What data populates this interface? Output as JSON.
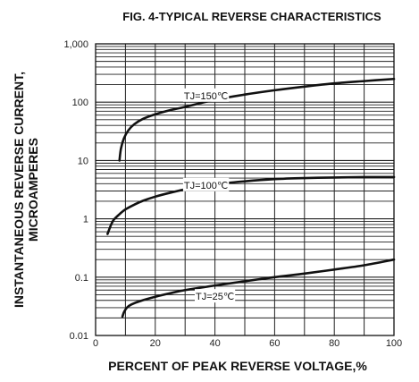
{
  "chart_data": {
    "type": "line",
    "title": "FIG. 4-TYPICAL REVERSE CHARACTERISTICS",
    "xlabel": "PERCENT OF PEAK REVERSE VOLTAGE,%",
    "ylabel_line1": "INSTANTANEOUS REVERSE CURRENT,",
    "ylabel_line2": "MICROAMPERES",
    "xlim": [
      0,
      100
    ],
    "ylim": [
      0.01,
      1000
    ],
    "yscale": "log",
    "grid": true,
    "x_ticks": [
      {
        "value": 0,
        "label": "0"
      },
      {
        "value": 20,
        "label": "20"
      },
      {
        "value": 40,
        "label": "40"
      },
      {
        "value": 60,
        "label": "60"
      },
      {
        "value": 80,
        "label": "80"
      },
      {
        "value": 100,
        "label": "100"
      }
    ],
    "y_ticks": [
      {
        "value": 0.01,
        "label": "0.01"
      },
      {
        "value": 0.1,
        "label": "0.1"
      },
      {
        "value": 1,
        "label": "1"
      },
      {
        "value": 10,
        "label": "10"
      },
      {
        "value": 100,
        "label": "100"
      },
      {
        "value": 1000,
        "label": "1,000"
      }
    ],
    "series": [
      {
        "name": "TJ=150℃",
        "label_at": [
          37,
          130
        ],
        "x": [
          8,
          8.5,
          9.5,
          11,
          13,
          16,
          20,
          25,
          30,
          40,
          50,
          60,
          70,
          80,
          90,
          100
        ],
        "y": [
          10,
          16,
          24,
          33,
          42,
          52,
          62,
          73,
          83,
          110,
          135,
          160,
          185,
          210,
          230,
          250
        ]
      },
      {
        "name": "TJ=100℃",
        "label_at": [
          37,
          3.8
        ],
        "x": [
          4,
          5,
          6,
          8,
          10,
          13,
          16,
          20,
          25,
          30,
          40,
          50,
          60,
          70,
          80,
          90,
          100
        ],
        "y": [
          0.55,
          0.75,
          0.95,
          1.2,
          1.45,
          1.75,
          2.05,
          2.4,
          2.8,
          3.2,
          3.9,
          4.4,
          4.8,
          5.0,
          5.1,
          5.2,
          5.2
        ]
      },
      {
        "name": "TJ=25℃",
        "label_at": [
          40,
          0.047
        ],
        "x": [
          9,
          9.5,
          10.5,
          12,
          15,
          20,
          25,
          30,
          40,
          50,
          60,
          70,
          80,
          90,
          100
        ],
        "y": [
          0.021,
          0.025,
          0.03,
          0.034,
          0.039,
          0.046,
          0.053,
          0.06,
          0.072,
          0.085,
          0.1,
          0.115,
          0.135,
          0.16,
          0.2
        ]
      }
    ]
  }
}
